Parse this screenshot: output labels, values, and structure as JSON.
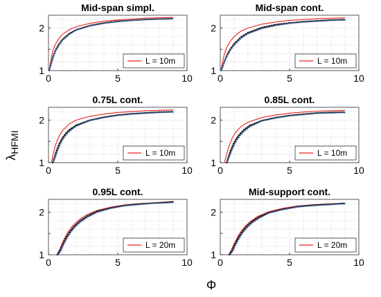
{
  "figure": {
    "ylabel_main": "λ",
    "ylabel_sub": "HFMI",
    "xlabel": "Φ"
  },
  "chart_data": [
    {
      "type": "line",
      "title": "Mid-span simpl.",
      "xlim": [
        0,
        10
      ],
      "ylim": [
        1,
        2.3
      ],
      "xticks": [
        "0",
        "5",
        "10"
      ],
      "yticks": [
        "1",
        "1.5",
        "2"
      ],
      "grid": true,
      "legend": "bottom-right",
      "series": [
        {
          "name": "L = 10m",
          "color": "#e8201e",
          "style": "solid",
          "x": [
            0.05,
            0.15,
            0.3,
            0.5,
            0.75,
            1,
            1.5,
            2,
            3,
            4,
            5,
            6,
            7,
            8,
            9
          ],
          "y": [
            1.0,
            1.2,
            1.45,
            1.62,
            1.75,
            1.85,
            1.96,
            2.03,
            2.11,
            2.16,
            2.19,
            2.21,
            2.23,
            2.24,
            2.25
          ]
        },
        {
          "name": "",
          "color": "#000000",
          "style": "dotted",
          "x": [
            0.05,
            0.15,
            0.3,
            0.5,
            0.75,
            1,
            1.5,
            2,
            3,
            4,
            5,
            6,
            7,
            8,
            9
          ],
          "y": [
            1.0,
            1.12,
            1.3,
            1.48,
            1.62,
            1.73,
            1.87,
            1.96,
            2.06,
            2.12,
            2.16,
            2.18,
            2.2,
            2.21,
            2.22
          ]
        },
        {
          "name": "",
          "color": "#3a5a8c",
          "style": "dotted",
          "x": [
            0.05,
            0.15,
            0.3,
            0.5,
            0.75,
            1,
            1.5,
            2,
            3,
            4,
            5,
            6,
            7,
            8,
            9
          ],
          "y": [
            1.0,
            1.1,
            1.27,
            1.45,
            1.59,
            1.71,
            1.85,
            1.95,
            2.05,
            2.11,
            2.15,
            2.18,
            2.2,
            2.21,
            2.22
          ]
        }
      ]
    },
    {
      "type": "line",
      "title": "Mid-span cont.",
      "xlim": [
        0,
        10
      ],
      "ylim": [
        1,
        2.3
      ],
      "xticks": [
        "0",
        "5",
        "10"
      ],
      "yticks": [
        "1",
        "1.5",
        "2"
      ],
      "grid": true,
      "legend": "bottom-right",
      "series": [
        {
          "name": "L = 10m",
          "color": "#e8201e",
          "style": "solid",
          "x": [
            0.05,
            0.15,
            0.3,
            0.5,
            0.75,
            1,
            1.5,
            2,
            3,
            4,
            5,
            6,
            7,
            8,
            9
          ],
          "y": [
            1.0,
            1.18,
            1.4,
            1.57,
            1.7,
            1.8,
            1.93,
            2.0,
            2.09,
            2.14,
            2.18,
            2.2,
            2.22,
            2.23,
            2.24
          ]
        },
        {
          "name": "",
          "color": "#000000",
          "style": "dotted",
          "x": [
            0.05,
            0.15,
            0.3,
            0.5,
            0.75,
            1,
            1.5,
            2,
            3,
            4,
            5,
            6,
            7,
            8,
            9
          ],
          "y": [
            1.0,
            1.08,
            1.22,
            1.38,
            1.52,
            1.63,
            1.79,
            1.89,
            2.01,
            2.08,
            2.12,
            2.15,
            2.17,
            2.19,
            2.2
          ]
        },
        {
          "name": "",
          "color": "#3a5a8c",
          "style": "dotted",
          "x": [
            0.05,
            0.15,
            0.3,
            0.5,
            0.75,
            1,
            1.5,
            2,
            3,
            4,
            5,
            6,
            7,
            8,
            9
          ],
          "y": [
            1.0,
            1.06,
            1.2,
            1.35,
            1.49,
            1.6,
            1.76,
            1.87,
            1.99,
            2.06,
            2.11,
            2.14,
            2.16,
            2.18,
            2.19
          ]
        }
      ]
    },
    {
      "type": "line",
      "title": "0.75L cont.",
      "xlim": [
        0,
        10
      ],
      "ylim": [
        1,
        2.3
      ],
      "xticks": [
        "0",
        "5",
        "10"
      ],
      "yticks": [
        "1",
        "1.5",
        "2"
      ],
      "grid": true,
      "legend": "bottom-right",
      "series": [
        {
          "name": "L = 10m",
          "color": "#e8201e",
          "style": "solid",
          "x": [
            0.2,
            0.3,
            0.45,
            0.6,
            0.8,
            1,
            1.5,
            2,
            3,
            4,
            5,
            6,
            7,
            8,
            9
          ],
          "y": [
            1.0,
            1.15,
            1.35,
            1.5,
            1.64,
            1.75,
            1.91,
            2.0,
            2.09,
            2.14,
            2.18,
            2.2,
            2.22,
            2.23,
            2.24
          ]
        },
        {
          "name": "",
          "color": "#000000",
          "style": "dotted",
          "x": [
            0.3,
            0.45,
            0.6,
            0.8,
            1,
            1.25,
            1.5,
            2,
            3,
            4,
            5,
            6,
            7,
            8,
            9
          ],
          "y": [
            1.0,
            1.15,
            1.3,
            1.46,
            1.58,
            1.69,
            1.77,
            1.88,
            2.0,
            2.07,
            2.12,
            2.15,
            2.17,
            2.19,
            2.2
          ]
        },
        {
          "name": "",
          "color": "#3a5a8c",
          "style": "dotted",
          "x": [
            0.35,
            0.5,
            0.65,
            0.85,
            1.05,
            1.3,
            1.55,
            2,
            3,
            4,
            5,
            6,
            7,
            8,
            9
          ],
          "y": [
            1.0,
            1.14,
            1.28,
            1.44,
            1.56,
            1.67,
            1.75,
            1.86,
            1.99,
            2.06,
            2.11,
            2.14,
            2.16,
            2.18,
            2.19
          ]
        }
      ]
    },
    {
      "type": "line",
      "title": "0.85L cont.",
      "xlim": [
        0,
        10
      ],
      "ylim": [
        1,
        2.3
      ],
      "xticks": [
        "0",
        "5",
        "10"
      ],
      "yticks": [
        "1",
        "1.5",
        "2"
      ],
      "grid": true,
      "legend": "bottom-right",
      "series": [
        {
          "name": "L = 10m",
          "color": "#e8201e",
          "style": "solid",
          "x": [
            0.3,
            0.4,
            0.55,
            0.7,
            0.9,
            1.1,
            1.5,
            2,
            3,
            4,
            5,
            6,
            7,
            8,
            9
          ],
          "y": [
            1.0,
            1.13,
            1.3,
            1.45,
            1.6,
            1.71,
            1.85,
            1.95,
            2.06,
            2.12,
            2.16,
            2.19,
            2.21,
            2.22,
            2.23
          ]
        },
        {
          "name": "",
          "color": "#000000",
          "style": "dotted",
          "x": [
            0.45,
            0.6,
            0.75,
            0.95,
            1.15,
            1.4,
            1.7,
            2.1,
            3,
            4,
            5,
            6,
            7,
            8,
            9
          ],
          "y": [
            1.0,
            1.15,
            1.29,
            1.44,
            1.56,
            1.67,
            1.77,
            1.87,
            1.99,
            2.06,
            2.11,
            2.14,
            2.17,
            2.18,
            2.19
          ]
        },
        {
          "name": "",
          "color": "#3a5a8c",
          "style": "dotted",
          "x": [
            0.5,
            0.65,
            0.8,
            1.0,
            1.2,
            1.45,
            1.75,
            2.15,
            3,
            4,
            5,
            6,
            7,
            8,
            9
          ],
          "y": [
            1.0,
            1.14,
            1.27,
            1.42,
            1.54,
            1.65,
            1.75,
            1.85,
            1.98,
            2.05,
            2.1,
            2.13,
            2.16,
            2.17,
            2.18
          ]
        }
      ]
    },
    {
      "type": "line",
      "title": "0.95L cont.",
      "xlim": [
        0,
        10
      ],
      "ylim": [
        1,
        2.3
      ],
      "xticks": [
        "0",
        "5",
        "10"
      ],
      "yticks": [
        "1",
        "1.5",
        "2"
      ],
      "grid": true,
      "legend": "bottom-right",
      "series": [
        {
          "name": "L = 20m",
          "color": "#e8201e",
          "style": "solid",
          "x": [
            0.6,
            0.8,
            1.0,
            1.25,
            1.5,
            1.8,
            2.2,
            2.7,
            3.5,
            4.5,
            5.5,
            6.5,
            7.5,
            8.5,
            9
          ],
          "y": [
            1.0,
            1.12,
            1.28,
            1.45,
            1.58,
            1.7,
            1.82,
            1.93,
            2.04,
            2.12,
            2.17,
            2.2,
            2.22,
            2.24,
            2.25
          ]
        },
        {
          "name": "",
          "color": "#000000",
          "style": "dotted",
          "x": [
            0.65,
            0.85,
            1.05,
            1.3,
            1.55,
            1.85,
            2.25,
            2.75,
            3.5,
            4.5,
            5.5,
            6.5,
            7.5,
            8.5,
            9
          ],
          "y": [
            1.0,
            1.11,
            1.26,
            1.42,
            1.55,
            1.67,
            1.79,
            1.9,
            2.02,
            2.1,
            2.16,
            2.19,
            2.21,
            2.23,
            2.24
          ]
        },
        {
          "name": "",
          "color": "#3a5a8c",
          "style": "dotted",
          "x": [
            0.7,
            0.9,
            1.1,
            1.35,
            1.6,
            1.9,
            2.3,
            2.8,
            3.5,
            4.5,
            5.5,
            6.5,
            7.5,
            8.5,
            9
          ],
          "y": [
            1.0,
            1.1,
            1.25,
            1.4,
            1.53,
            1.65,
            1.77,
            1.88,
            2.0,
            2.09,
            2.15,
            2.18,
            2.21,
            2.22,
            2.23
          ]
        }
      ]
    },
    {
      "type": "line",
      "title": "Mid-support cont.",
      "xlim": [
        0,
        10
      ],
      "ylim": [
        1,
        2.3
      ],
      "xticks": [
        "0",
        "5",
        "10"
      ],
      "yticks": [
        "1",
        "1.5",
        "2"
      ],
      "grid": true,
      "legend": "bottom-right",
      "series": [
        {
          "name": "L = 20m",
          "color": "#e8201e",
          "style": "solid",
          "x": [
            0.6,
            0.8,
            1.0,
            1.25,
            1.5,
            1.8,
            2.2,
            2.7,
            3.5,
            4.5,
            5.5,
            6.5,
            7.5,
            8.5,
            9
          ],
          "y": [
            1.0,
            1.11,
            1.26,
            1.42,
            1.55,
            1.67,
            1.79,
            1.9,
            2.01,
            2.09,
            2.14,
            2.17,
            2.19,
            2.2,
            2.21
          ]
        },
        {
          "name": "",
          "color": "#000000",
          "style": "dotted",
          "x": [
            0.65,
            0.85,
            1.05,
            1.3,
            1.55,
            1.85,
            2.25,
            2.75,
            3.5,
            4.5,
            5.5,
            6.5,
            7.5,
            8.5,
            9
          ],
          "y": [
            1.0,
            1.1,
            1.24,
            1.4,
            1.53,
            1.65,
            1.77,
            1.88,
            1.99,
            2.07,
            2.13,
            2.16,
            2.18,
            2.2,
            2.21
          ]
        },
        {
          "name": "",
          "color": "#3a5a8c",
          "style": "dotted",
          "x": [
            0.7,
            0.9,
            1.1,
            1.35,
            1.6,
            1.9,
            2.3,
            2.8,
            3.5,
            4.5,
            5.5,
            6.5,
            7.5,
            8.5,
            9
          ],
          "y": [
            1.0,
            1.09,
            1.23,
            1.38,
            1.51,
            1.63,
            1.75,
            1.86,
            1.98,
            2.06,
            2.12,
            2.15,
            2.17,
            2.19,
            2.2
          ]
        }
      ]
    }
  ]
}
